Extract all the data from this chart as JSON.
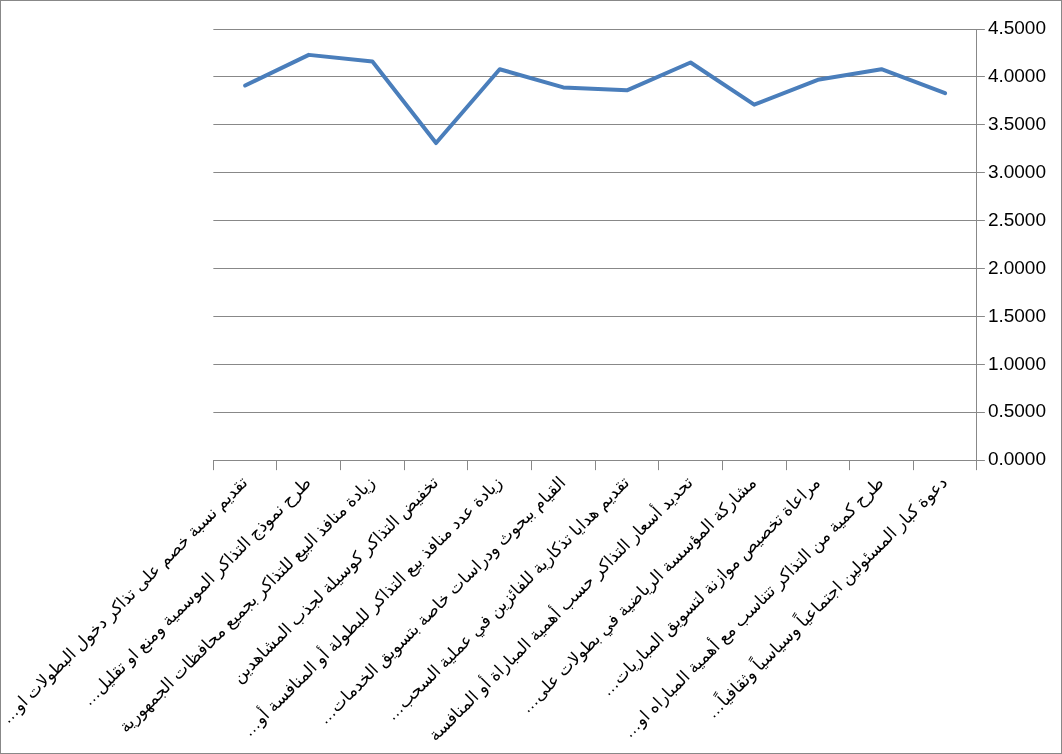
{
  "chart_data": {
    "type": "line",
    "categories": [
      "تقديم نسبة خصم على تذاكر دخول البطولات او…",
      "طرح نموذج التذاكر الموسمية ومنع او تقليل…",
      "زيادة منافذ البيع للتذاكر بجميع محافظات الجمهورية",
      "تخفيض التذاكر كوسيلة لجذب المشاهدين",
      "زيادة عدد منافذ بيع التذاكر للبطولة أو المنافسة أو…",
      "القيام ببحوث ودراسات خاصة بتسويق الخدمات…",
      "تقديم هدايا تذكارية للفائزين في عملية السحب…",
      "تحديد أسعار التذاكر حسب أهمية المباراة أو المنافسة",
      "مشاركة المؤسسة الرياضية في بطولات على…",
      "مراعاة تخصيص موازنة لتسويق المباريات…",
      "طرح كمية من التذاكر تتناسب مع أهمية المباراه او…",
      "دعوة كبار المسئولين اجتماعياً وسياسياً وثقافياً…"
    ],
    "series": [
      {
        "color": "#4a7ebb",
        "values": [
          3.91,
          4.23,
          4.16,
          3.31,
          4.08,
          3.89,
          3.86,
          4.15,
          3.71,
          3.97,
          4.08,
          3.83
        ]
      }
    ],
    "ylim": [
      0,
      4.5
    ],
    "yticks": [
      {
        "value": 0,
        "label": "0.0000"
      },
      {
        "value": 0.5,
        "label": "0.5000"
      },
      {
        "value": 1,
        "label": "1.0000"
      },
      {
        "value": 1.5,
        "label": "1.5000"
      },
      {
        "value": 2,
        "label": "2.0000"
      },
      {
        "value": 2.5,
        "label": "2.5000"
      },
      {
        "value": 3,
        "label": "3.0000"
      },
      {
        "value": 3.5,
        "label": "3.5000"
      },
      {
        "value": 4,
        "label": "4.0000"
      },
      {
        "value": 4.5,
        "label": "4.5000"
      }
    ],
    "grid": "y",
    "legend": false,
    "marker": "none",
    "line_style": "solid"
  }
}
